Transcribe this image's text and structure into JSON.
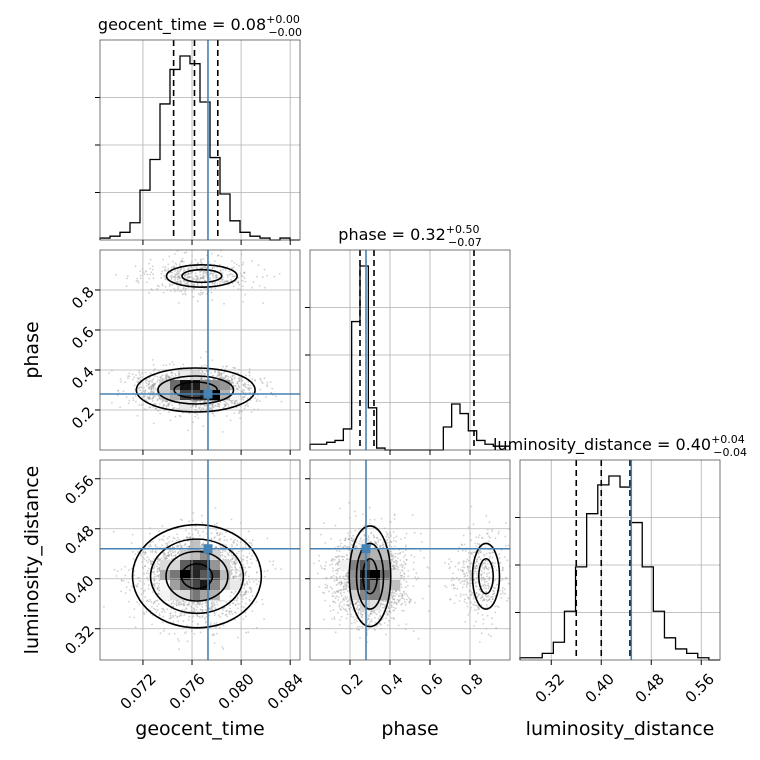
{
  "chart_data": {
    "type": "corner",
    "parameters": [
      {
        "name": "geocent_time",
        "title": {
          "label": "geocent_time",
          "median": "0.08",
          "plus": "+0.00",
          "minus": "−0.00"
        },
        "range": [
          0.0685,
          0.0848
        ],
        "ticks": [
          "0.072",
          "0.076",
          "0.080",
          "0.084"
        ],
        "tick_values": [
          0.072,
          0.076,
          0.08,
          0.084
        ],
        "truth": 0.0773,
        "quantiles": [
          0.0745,
          0.0762,
          0.0781
        ],
        "histogram": [
          0.01,
          0.02,
          0.04,
          0.09,
          0.26,
          0.42,
          0.71,
          0.89,
          0.96,
          0.92,
          0.72,
          0.43,
          0.24,
          0.1,
          0.04,
          0.02,
          0.01,
          0.0,
          0.01,
          0.0
        ]
      },
      {
        "name": "phase",
        "title": {
          "label": "phase",
          "median": "0.32",
          "plus": "+0.50",
          "minus": "−0.07"
        },
        "range": [
          0.0,
          1.0
        ],
        "ticks": [
          "0.2",
          "0.4",
          "0.6",
          "0.8"
        ],
        "tick_values": [
          0.2,
          0.4,
          0.6,
          0.8
        ],
        "truth": 0.28,
        "quantiles": [
          0.25,
          0.32,
          0.82
        ],
        "histogram": [
          0.03,
          0.03,
          0.04,
          0.05,
          0.11,
          0.67,
          0.96,
          0.22,
          0.01,
          0.0,
          0.0,
          0.0,
          0.0,
          0.0,
          0.0,
          0.0,
          0.12,
          0.24,
          0.19,
          0.1,
          0.05,
          0.03,
          0.02,
          0.02
        ]
      },
      {
        "name": "luminosity_distance",
        "title": {
          "label": "luminosity_distance",
          "median": "0.40",
          "plus": "+0.04",
          "minus": "−0.04"
        },
        "range": [
          0.27,
          0.59
        ],
        "ticks": [
          "0.32",
          "0.40",
          "0.48",
          "0.56"
        ],
        "tick_values": [
          0.32,
          0.4,
          0.48,
          0.56
        ],
        "truth": 0.448,
        "quantiles": [
          0.36,
          0.4,
          0.446
        ],
        "histogram": [
          0.01,
          0.01,
          0.03,
          0.08,
          0.22,
          0.42,
          0.66,
          0.79,
          0.83,
          0.78,
          0.62,
          0.42,
          0.22,
          0.1,
          0.05,
          0.03,
          0.01,
          0.0
        ]
      }
    ],
    "truth_color": "#4682b4"
  }
}
